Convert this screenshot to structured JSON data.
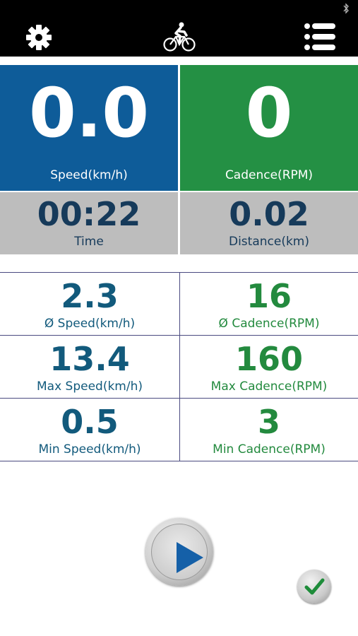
{
  "colors": {
    "speed_tile": "#0e5c99",
    "cadence_tile": "#249044",
    "summary_tile": "#bdbdbd",
    "speed_text": "#125a7c",
    "cadence_text": "#238a3e"
  },
  "topbar": {
    "left_icon": "gear-icon",
    "center_icon": "cyclist-icon",
    "right_icon": "menu-list-icon",
    "status_icon": "bluetooth-icon"
  },
  "live": {
    "speed": {
      "value": "0.0",
      "label": "Speed(km/h)"
    },
    "cadence": {
      "value": "0",
      "label": "Cadence(RPM)"
    },
    "time": {
      "value": "00:22",
      "label": "Time"
    },
    "distance": {
      "value": "0.02",
      "label": "Distance(km)"
    }
  },
  "stats": {
    "avg_speed": {
      "value": "2.3",
      "label": "Ø Speed(km/h)"
    },
    "avg_cadence": {
      "value": "16",
      "label": "Ø Cadence(RPM)"
    },
    "max_speed": {
      "value": "13.4",
      "label": "Max Speed(km/h)"
    },
    "max_cadence": {
      "value": "160",
      "label": "Max Cadence(RPM)"
    },
    "min_speed": {
      "value": "0.5",
      "label": "Min Speed(km/h)"
    },
    "min_cadence": {
      "value": "3",
      "label": "Min Cadence(RPM)"
    }
  },
  "controls": {
    "play_icon": "play-icon",
    "confirm_icon": "checkmark-icon"
  }
}
